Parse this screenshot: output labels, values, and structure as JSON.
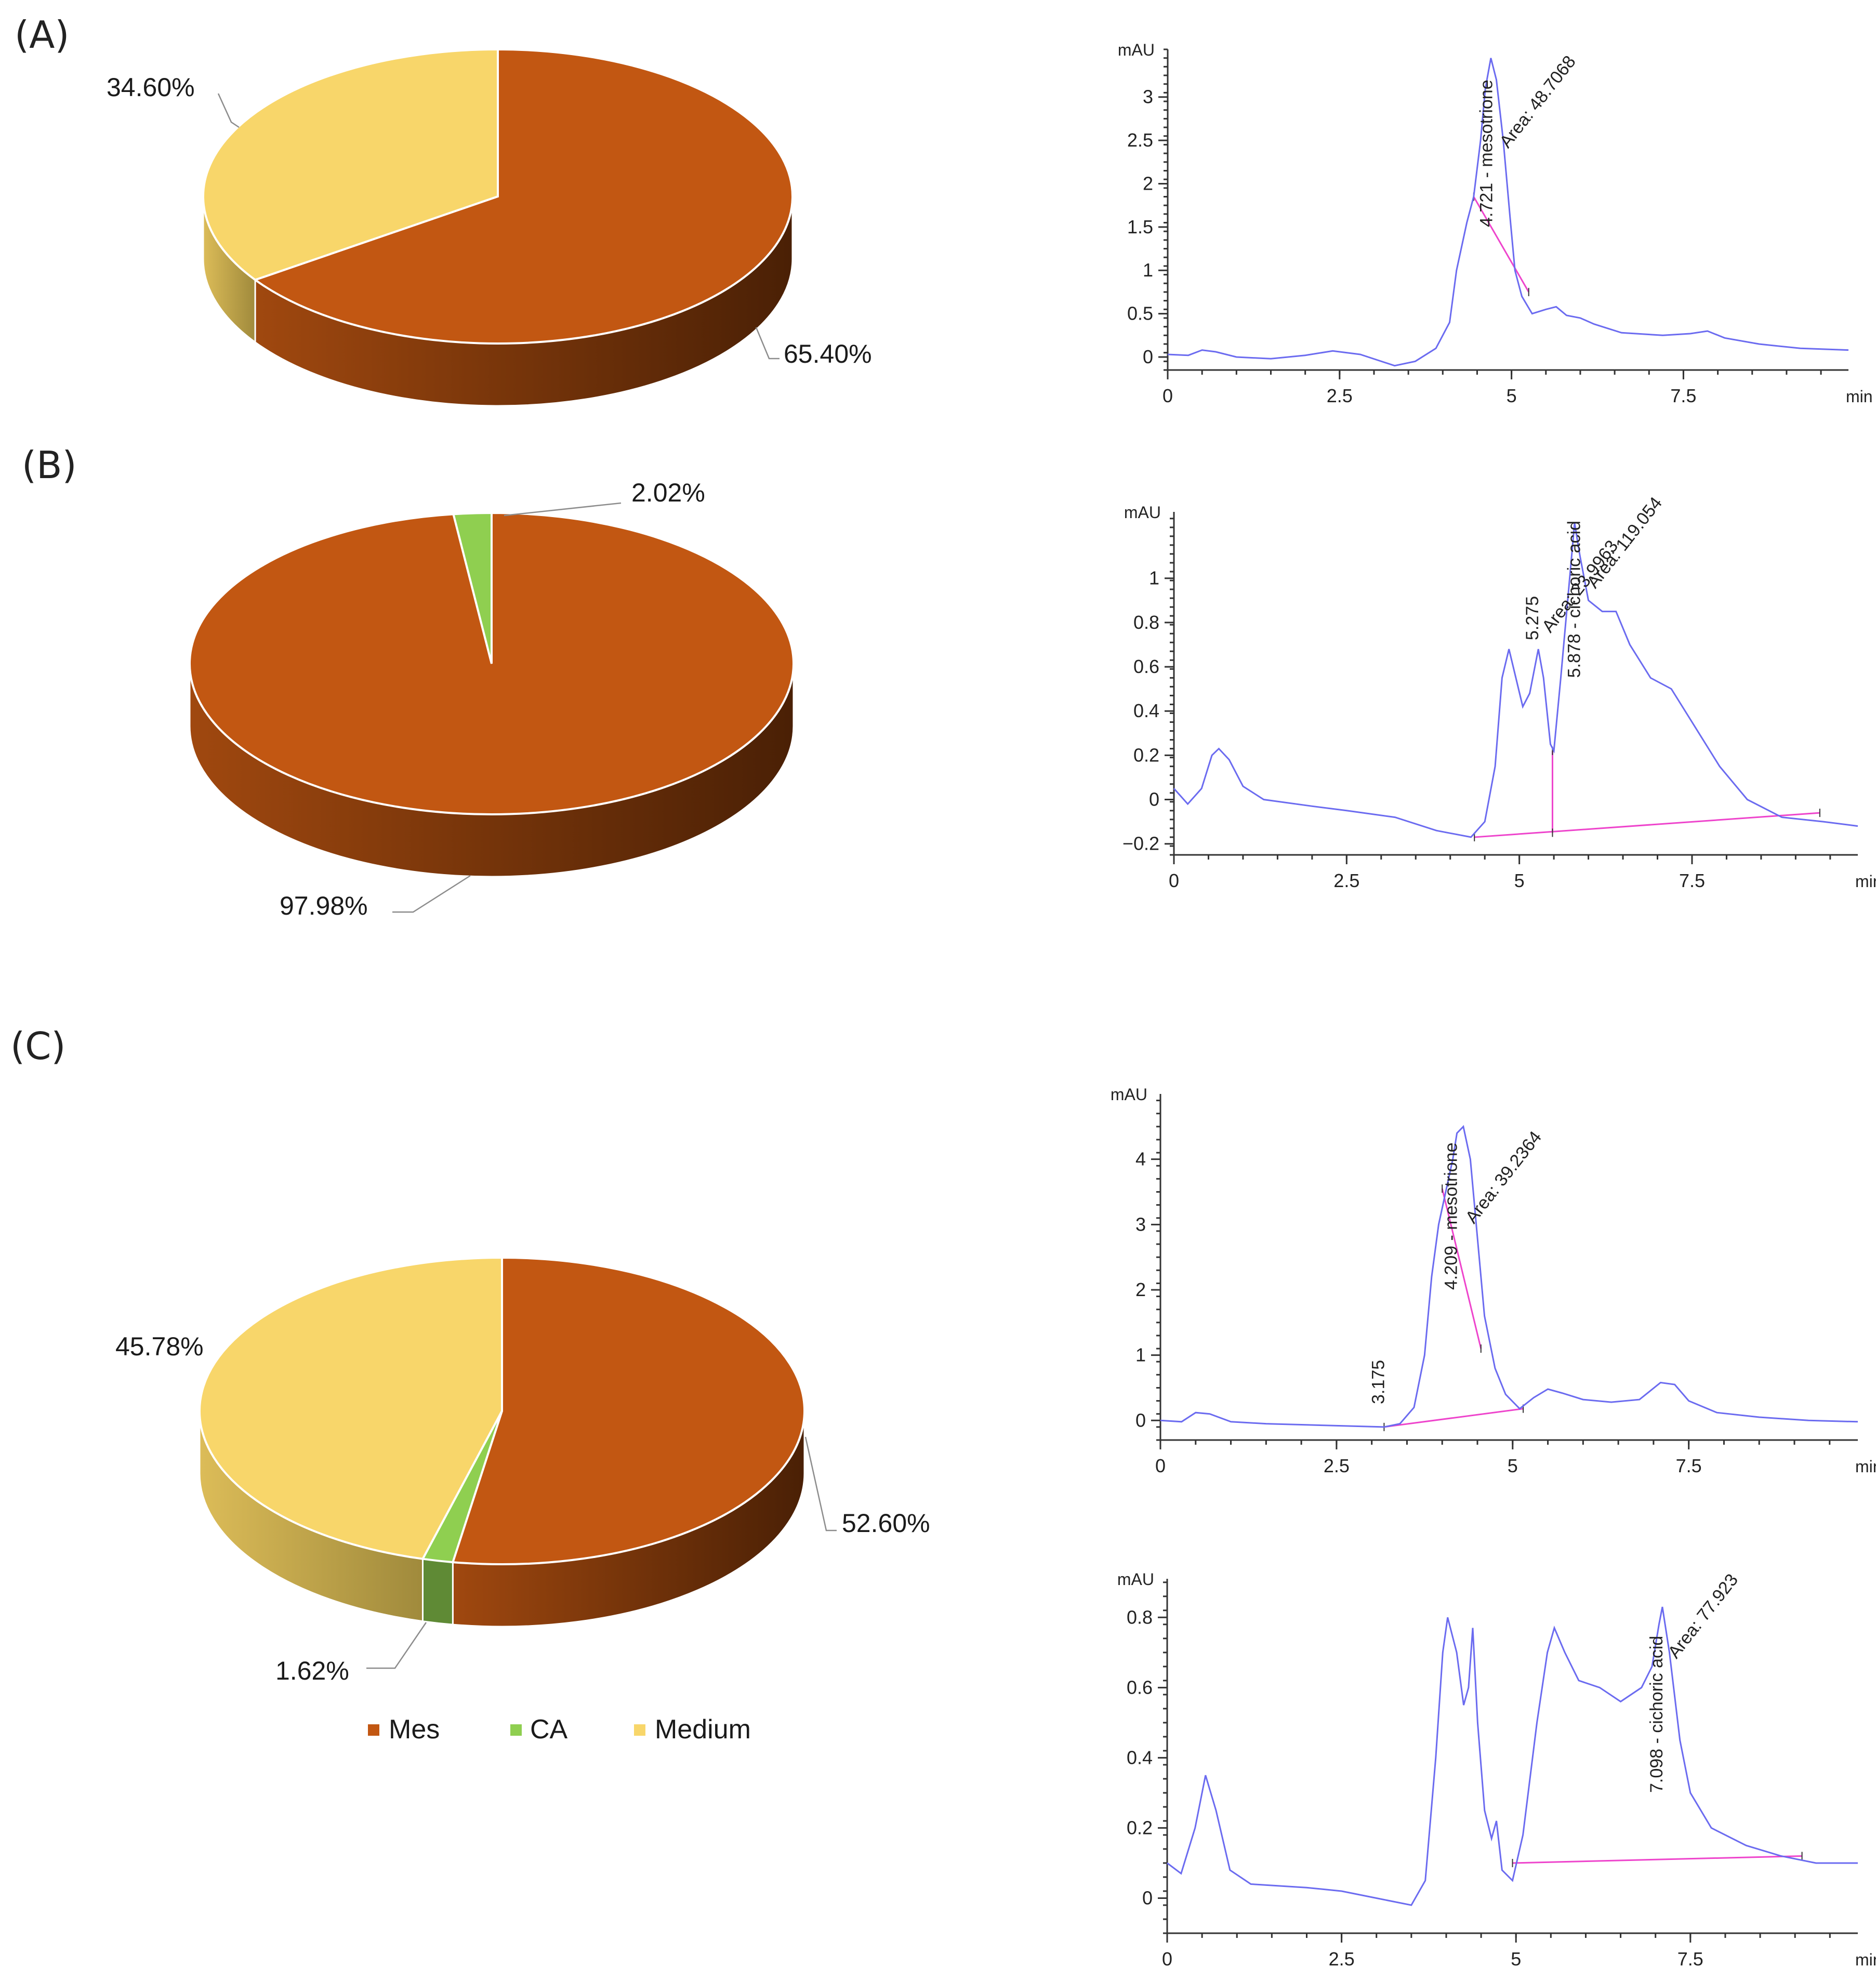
{
  "panel_labels": [
    "(A)",
    "(B)",
    "(C)"
  ],
  "colors": {
    "Mes": "#c25712",
    "Mes_side_light": "#a0480f",
    "Mes_side_dark": "#4a2005",
    "CA": "#8fcf50",
    "CA_side": "#5f8a35",
    "Medium": "#f8d66a",
    "Medium_side_light": "#dcbc58",
    "Medium_side_dark": "#a08a3c",
    "trace": "#6b6bf0",
    "baseline": "#ee44cc"
  },
  "legend": [
    {
      "label": "Mes",
      "color": "#c25712"
    },
    {
      "label": "CA",
      "color": "#8fcf50"
    },
    {
      "label": "Medium",
      "color": "#f8d66a"
    }
  ],
  "chart_data": [
    {
      "id": "pieA",
      "type": "pie",
      "panel": "(A)",
      "categories": [
        "Mes",
        "Medium"
      ],
      "values": [
        65.4,
        34.6
      ],
      "labels": [
        "65.40%",
        "34.60%"
      ]
    },
    {
      "id": "pieB",
      "type": "pie",
      "panel": "(B)",
      "categories": [
        "Mes",
        "CA"
      ],
      "values": [
        97.98,
        2.02
      ],
      "labels": [
        "97.98%",
        "2.02%"
      ]
    },
    {
      "id": "pieC",
      "type": "pie",
      "panel": "(C)",
      "categories": [
        "Mes",
        "CA",
        "Medium"
      ],
      "values": [
        52.6,
        1.62,
        45.78
      ],
      "labels": [
        "52.60%",
        "1.62%",
        "45.78%"
      ]
    },
    {
      "id": "chromA",
      "type": "line",
      "panel": "(A)",
      "ylabel": "mAU",
      "xlabel": "min",
      "xlim": [
        0,
        9.9
      ],
      "ylim": [
        -0.15,
        3.55
      ],
      "xticks": [
        0,
        2.5,
        5,
        7.5
      ],
      "xtick_labels": [
        "0",
        "2.5",
        "5",
        "7.5"
      ],
      "yticks": [
        0,
        0.5,
        1,
        1.5,
        2,
        2.5,
        3
      ],
      "ytick_labels": [
        "0",
        "0.5",
        "1",
        "1.5",
        "2",
        "2.5",
        "3"
      ],
      "trace": [
        [
          0,
          0.03
        ],
        [
          0.3,
          0.02
        ],
        [
          0.5,
          0.08
        ],
        [
          0.7,
          0.06
        ],
        [
          1.0,
          0.0
        ],
        [
          1.5,
          -0.02
        ],
        [
          2.0,
          0.02
        ],
        [
          2.4,
          0.07
        ],
        [
          2.8,
          0.03
        ],
        [
          3.3,
          -0.1
        ],
        [
          3.6,
          -0.05
        ],
        [
          3.9,
          0.1
        ],
        [
          4.1,
          0.4
        ],
        [
          4.2,
          1.0
        ],
        [
          4.35,
          1.55
        ],
        [
          4.45,
          1.85
        ],
        [
          4.55,
          2.5
        ],
        [
          4.62,
          3.1
        ],
        [
          4.7,
          3.45
        ],
        [
          4.78,
          3.2
        ],
        [
          4.88,
          2.5
        ],
        [
          4.98,
          1.6
        ],
        [
          5.05,
          1.0
        ],
        [
          5.15,
          0.7
        ],
        [
          5.3,
          0.5
        ],
        [
          5.5,
          0.55
        ],
        [
          5.65,
          0.58
        ],
        [
          5.8,
          0.48
        ],
        [
          6.0,
          0.45
        ],
        [
          6.2,
          0.38
        ],
        [
          6.6,
          0.28
        ],
        [
          7.2,
          0.25
        ],
        [
          7.6,
          0.27
        ],
        [
          7.85,
          0.3
        ],
        [
          8.1,
          0.22
        ],
        [
          8.6,
          0.15
        ],
        [
          9.2,
          0.1
        ],
        [
          9.9,
          0.08
        ]
      ],
      "integration_baselines": [
        [
          [
            4.45,
            1.85
          ],
          [
            5.25,
            0.75
          ]
        ]
      ],
      "annotations": [
        {
          "text": "4.721 - mesotrione",
          "x": 4.721,
          "y": 1.5
        },
        {
          "text": "Area: 48.7068",
          "x": 4.95,
          "y": 2.4
        }
      ]
    },
    {
      "id": "chromB",
      "type": "line",
      "panel": "(B)",
      "ylabel": "mAU",
      "xlabel": "min",
      "xlim": [
        0,
        9.9
      ],
      "ylim": [
        -0.25,
        1.3
      ],
      "xticks": [
        0,
        2.5,
        5,
        7.5
      ],
      "xtick_labels": [
        "0",
        "2.5",
        "5",
        "7.5"
      ],
      "yticks": [
        -0.2,
        0,
        0.2,
        0.4,
        0.6,
        0.8,
        1
      ],
      "ytick_labels": [
        "−0.2",
        "0",
        "0.2",
        "0.4",
        "0.6",
        "0.8",
        "1"
      ],
      "trace": [
        [
          0,
          0.05
        ],
        [
          0.2,
          -0.02
        ],
        [
          0.4,
          0.05
        ],
        [
          0.55,
          0.2
        ],
        [
          0.65,
          0.23
        ],
        [
          0.8,
          0.18
        ],
        [
          1.0,
          0.06
        ],
        [
          1.3,
          0.0
        ],
        [
          2.0,
          -0.03
        ],
        [
          2.5,
          -0.05
        ],
        [
          3.2,
          -0.08
        ],
        [
          3.8,
          -0.14
        ],
        [
          4.3,
          -0.17
        ],
        [
          4.5,
          -0.1
        ],
        [
          4.65,
          0.15
        ],
        [
          4.75,
          0.55
        ],
        [
          4.85,
          0.68
        ],
        [
          4.95,
          0.55
        ],
        [
          5.05,
          0.42
        ],
        [
          5.15,
          0.48
        ],
        [
          5.275,
          0.68
        ],
        [
          5.35,
          0.55
        ],
        [
          5.45,
          0.25
        ],
        [
          5.5,
          0.22
        ],
        [
          5.6,
          0.55
        ],
        [
          5.7,
          0.9
        ],
        [
          5.8,
          1.25
        ],
        [
          5.878,
          1.1
        ],
        [
          6.0,
          0.9
        ],
        [
          6.2,
          0.85
        ],
        [
          6.4,
          0.85
        ],
        [
          6.6,
          0.7
        ],
        [
          6.9,
          0.55
        ],
        [
          7.2,
          0.5
        ],
        [
          7.5,
          0.35
        ],
        [
          7.9,
          0.15
        ],
        [
          8.3,
          0.0
        ],
        [
          8.8,
          -0.08
        ],
        [
          9.4,
          -0.1
        ],
        [
          9.9,
          -0.12
        ]
      ],
      "integration_baselines": [
        [
          [
            4.35,
            -0.17
          ],
          [
            9.35,
            -0.06
          ]
        ],
        [
          [
            5.48,
            -0.15
          ],
          [
            5.48,
            0.22
          ]
        ]
      ],
      "annotations": [
        {
          "text": "5.275",
          "x": 5.275,
          "y": 0.72
        },
        {
          "text": "Area: 23.9963",
          "x": 5.45,
          "y": 0.75
        },
        {
          "text": "5.878 - cichoric acid",
          "x": 5.878,
          "y": 0.55
        },
        {
          "text": "Area: 119.054",
          "x": 6.1,
          "y": 0.95
        }
      ]
    },
    {
      "id": "chromC1",
      "type": "line",
      "panel": "(C)",
      "ylabel": "mAU",
      "xlabel": "min",
      "xlim": [
        0,
        9.9
      ],
      "ylim": [
        -0.3,
        5.0
      ],
      "xticks": [
        0,
        2.5,
        5,
        7.5
      ],
      "xtick_labels": [
        "0",
        "2.5",
        "5",
        "7.5"
      ],
      "yticks": [
        0,
        1,
        2,
        3,
        4
      ],
      "ytick_labels": [
        "0",
        "1",
        "2",
        "3",
        "4"
      ],
      "trace": [
        [
          0,
          0.0
        ],
        [
          0.3,
          -0.02
        ],
        [
          0.5,
          0.12
        ],
        [
          0.7,
          0.1
        ],
        [
          1.0,
          -0.02
        ],
        [
          1.5,
          -0.05
        ],
        [
          2.5,
          -0.08
        ],
        [
          3.175,
          -0.1
        ],
        [
          3.4,
          -0.05
        ],
        [
          3.6,
          0.2
        ],
        [
          3.75,
          1.0
        ],
        [
          3.85,
          2.2
        ],
        [
          3.95,
          3.0
        ],
        [
          4.05,
          3.5
        ],
        [
          4.15,
          4.0
        ],
        [
          4.209,
          4.4
        ],
        [
          4.3,
          4.5
        ],
        [
          4.4,
          4.0
        ],
        [
          4.5,
          2.8
        ],
        [
          4.6,
          1.6
        ],
        [
          4.75,
          0.8
        ],
        [
          4.9,
          0.4
        ],
        [
          5.1,
          0.18
        ],
        [
          5.3,
          0.35
        ],
        [
          5.5,
          0.48
        ],
        [
          5.7,
          0.42
        ],
        [
          6.0,
          0.32
        ],
        [
          6.4,
          0.28
        ],
        [
          6.8,
          0.32
        ],
        [
          7.1,
          0.58
        ],
        [
          7.3,
          0.55
        ],
        [
          7.5,
          0.3
        ],
        [
          7.9,
          0.12
        ],
        [
          8.5,
          0.05
        ],
        [
          9.2,
          0.0
        ],
        [
          9.9,
          -0.02
        ]
      ],
      "integration_baselines": [
        [
          [
            3.175,
            -0.1
          ],
          [
            5.15,
            0.18
          ]
        ],
        [
          [
            4.0,
            3.55
          ],
          [
            4.55,
            1.1
          ]
        ]
      ],
      "annotations": [
        {
          "text": "3.175",
          "x": 3.175,
          "y": 0.25
        },
        {
          "text": "4.209 - mesotrione",
          "x": 4.209,
          "y": 2.0
        },
        {
          "text": "Area: 39.2364",
          "x": 4.45,
          "y": 3.0
        }
      ]
    },
    {
      "id": "chromC2",
      "type": "line",
      "panel": "(C)",
      "ylabel": "mAU",
      "xlabel": "min",
      "xlim": [
        0,
        9.9
      ],
      "ylim": [
        -0.1,
        0.91
      ],
      "xticks": [
        0,
        2.5,
        5,
        7.5
      ],
      "xtick_labels": [
        "0",
        "2.5",
        "5",
        "7.5"
      ],
      "yticks": [
        0,
        0.2,
        0.4,
        0.6,
        0.8
      ],
      "ytick_labels": [
        "0",
        "0.2",
        "0.4",
        "0.6",
        "0.8"
      ],
      "trace": [
        [
          0,
          0.1
        ],
        [
          0.2,
          0.07
        ],
        [
          0.4,
          0.2
        ],
        [
          0.55,
          0.35
        ],
        [
          0.7,
          0.25
        ],
        [
          0.9,
          0.08
        ],
        [
          1.2,
          0.04
        ],
        [
          2.0,
          0.03
        ],
        [
          2.5,
          0.02
        ],
        [
          3.0,
          0.0
        ],
        [
          3.5,
          -0.02
        ],
        [
          3.7,
          0.05
        ],
        [
          3.85,
          0.4
        ],
        [
          3.95,
          0.7
        ],
        [
          4.02,
          0.8
        ],
        [
          4.15,
          0.7
        ],
        [
          4.25,
          0.55
        ],
        [
          4.32,
          0.6
        ],
        [
          4.38,
          0.77
        ],
        [
          4.45,
          0.5
        ],
        [
          4.55,
          0.25
        ],
        [
          4.65,
          0.17
        ],
        [
          4.72,
          0.22
        ],
        [
          4.8,
          0.08
        ],
        [
          4.95,
          0.05
        ],
        [
          5.1,
          0.18
        ],
        [
          5.3,
          0.5
        ],
        [
          5.45,
          0.7
        ],
        [
          5.55,
          0.77
        ],
        [
          5.7,
          0.7
        ],
        [
          5.9,
          0.62
        ],
        [
          6.2,
          0.6
        ],
        [
          6.5,
          0.56
        ],
        [
          6.8,
          0.6
        ],
        [
          6.95,
          0.66
        ],
        [
          7.05,
          0.78
        ],
        [
          7.098,
          0.83
        ],
        [
          7.2,
          0.7
        ],
        [
          7.35,
          0.45
        ],
        [
          7.5,
          0.3
        ],
        [
          7.8,
          0.2
        ],
        [
          8.3,
          0.15
        ],
        [
          8.8,
          0.12
        ],
        [
          9.3,
          0.1
        ],
        [
          9.9,
          0.1
        ]
      ],
      "integration_baselines": [
        [
          [
            4.95,
            0.1
          ],
          [
            9.1,
            0.12
          ]
        ]
      ],
      "annotations": [
        {
          "text": "7.098 - cichoric acid",
          "x": 7.098,
          "y": 0.3
        },
        {
          "text": "Area: 77.923",
          "x": 7.3,
          "y": 0.68
        }
      ]
    }
  ]
}
